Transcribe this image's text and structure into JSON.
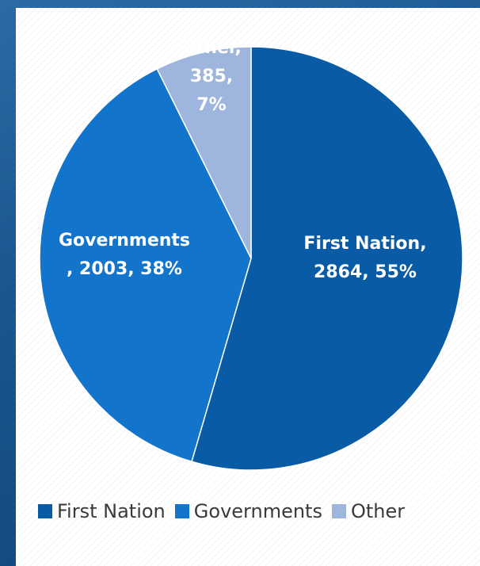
{
  "chart_data": {
    "type": "pie",
    "title": "",
    "slices": [
      {
        "label": "First Nation",
        "value": 2864,
        "percent": 55,
        "color": "#0a5ba6",
        "data_label": [
          "First Nation,",
          "2864, 55%"
        ]
      },
      {
        "label": "Governments",
        "value": 2003,
        "percent": 38,
        "color": "#1275cb",
        "data_label": [
          "Governments",
          ", 2003, 38%"
        ]
      },
      {
        "label": "Other",
        "value": 385,
        "percent": 7,
        "color": "#9eb5de",
        "data_label": [
          "Other,",
          "385,",
          "7%"
        ]
      }
    ],
    "legend": {
      "placement": "bottom",
      "entries": [
        "First Nation",
        "Governments",
        "Other"
      ]
    }
  }
}
